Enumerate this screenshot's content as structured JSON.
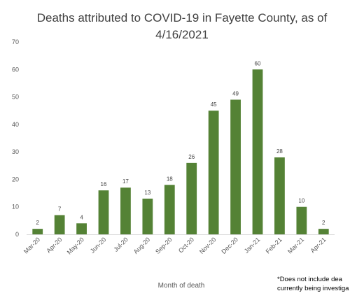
{
  "chart_data": {
    "type": "bar",
    "title_line1": "Deaths attributed to COVID-19 in Fayette County, as of",
    "title_line2": "4/16/2021",
    "xlabel": "Month of death",
    "ylabel": "",
    "categories": [
      "Mar-20",
      "Apr-20",
      "May-20",
      "Jun-20",
      "Jul-20",
      "Aug-20",
      "Sep-20",
      "Oct-20",
      "Nov-20",
      "Dec-20",
      "Jan-21",
      "Feb-21",
      "Mar-21",
      "Apr-21"
    ],
    "values": [
      2,
      7,
      4,
      16,
      17,
      13,
      18,
      26,
      45,
      49,
      60,
      28,
      10,
      2
    ],
    "ylim": [
      0,
      70
    ],
    "yticks": [
      0,
      10,
      20,
      30,
      40,
      50,
      60,
      70
    ],
    "grid": false,
    "legend": "none",
    "bar_color": "#548235",
    "footnote_line1": "*Does not include dea",
    "footnote_line2": "currently being investiga"
  }
}
